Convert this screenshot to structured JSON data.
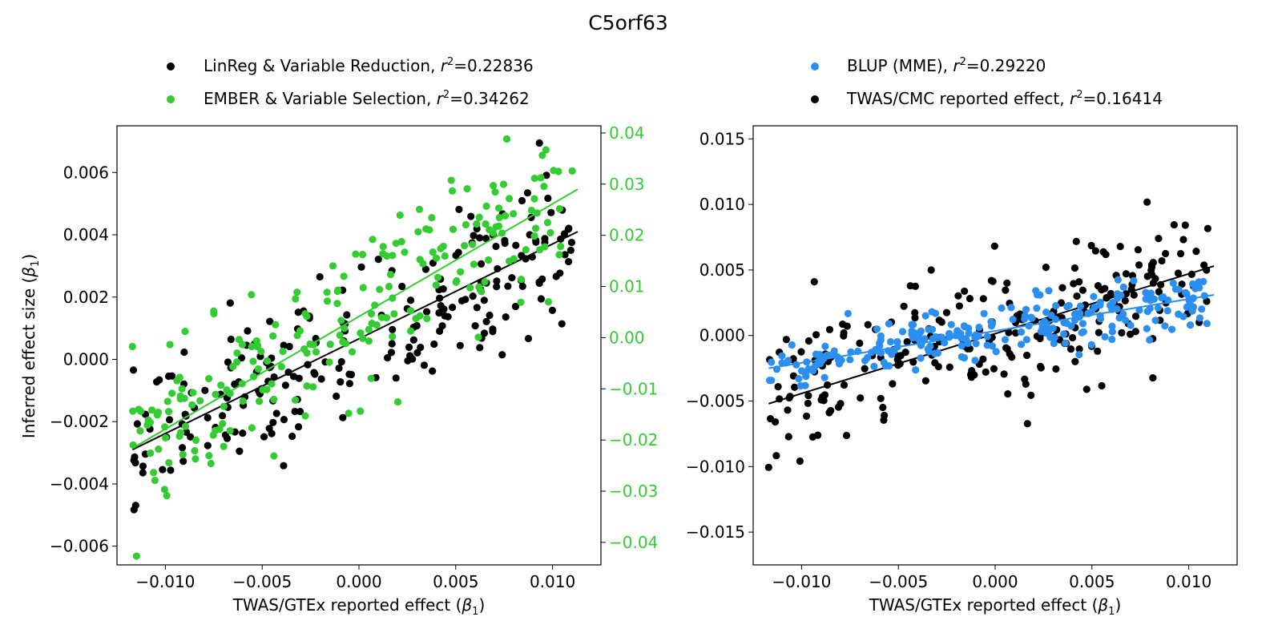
{
  "figure": {
    "title": "C5orf63"
  },
  "colors": {
    "black": "#000000",
    "green": "#33cc33",
    "blue": "#2b8ff0"
  },
  "chart_data": [
    {
      "type": "scatter",
      "panel": "left",
      "xlabel_prefix": "TWAS/GTEx reported effect (",
      "xlabel_sym": "β",
      "xlabel_sub": "1",
      "xlabel_suffix": ")",
      "ylabel_prefix": "Inferred effect size (",
      "ylabel_sym": "β",
      "ylabel_sub": "1",
      "ylabel_suffix": ")",
      "xlim": [
        -0.0125,
        0.0125
      ],
      "ylim": [
        -0.0066,
        0.0075
      ],
      "y2lim": [
        -0.0444,
        0.0414
      ],
      "xticks": [
        -0.01,
        -0.005,
        0.0,
        0.005,
        0.01
      ],
      "xtick_labels": [
        "−0.010",
        "−0.005",
        "0.000",
        "0.005",
        "0.010"
      ],
      "yticks": [
        -0.006,
        -0.004,
        -0.002,
        0.0,
        0.002,
        0.004,
        0.006
      ],
      "ytick_labels": [
        "−0.006",
        "−0.004",
        "−0.002",
        "0.000",
        "0.002",
        "0.004",
        "0.006"
      ],
      "y2ticks": [
        -0.04,
        -0.03,
        -0.02,
        -0.01,
        0.0,
        0.01,
        0.02,
        0.03,
        0.04
      ],
      "y2tick_labels": [
        "−0.04",
        "−0.03",
        "−0.02",
        "−0.01",
        "0.00",
        "0.01",
        "0.02",
        "0.03",
        "0.04"
      ],
      "legend": [
        {
          "label": "LinReg & Variable Reduction, ",
          "stat": "=0.22836",
          "color": "#000000"
        },
        {
          "label": "EMBER & Variable Selection, ",
          "stat": "=0.34262",
          "color": "#33cc33"
        }
      ],
      "series": [
        {
          "name": "LinReg & Variable Reduction",
          "color": "#000000",
          "axis": "left",
          "n_points": 230,
          "fit": {
            "x": [
              -0.0117,
              0.0113
            ],
            "y": [
              -0.0029,
              0.0041
            ]
          }
        },
        {
          "name": "EMBER & Variable Selection",
          "color": "#33cc33",
          "axis": "right",
          "n_points": 230,
          "fit": {
            "x": [
              -0.0117,
              0.0113
            ],
            "y": [
              -0.0216,
              0.029
            ]
          }
        }
      ]
    },
    {
      "type": "scatter",
      "panel": "right",
      "xlabel_prefix": "TWAS/GTEx reported effect (",
      "xlabel_sym": "β",
      "xlabel_sub": "1",
      "xlabel_suffix": ")",
      "xlim": [
        -0.0125,
        0.0125
      ],
      "ylim": [
        -0.0175,
        0.016
      ],
      "xticks": [
        -0.01,
        -0.005,
        0.0,
        0.005,
        0.01
      ],
      "xtick_labels": [
        "−0.010",
        "−0.005",
        "0.000",
        "0.005",
        "0.010"
      ],
      "yticks": [
        -0.015,
        -0.01,
        -0.005,
        0.0,
        0.005,
        0.01,
        0.015
      ],
      "ytick_labels": [
        "−0.015",
        "−0.010",
        "−0.005",
        "0.000",
        "0.005",
        "0.010",
        "0.015"
      ],
      "legend": [
        {
          "label": "BLUP (MME), ",
          "stat": "=0.29220",
          "color": "#2b8ff0"
        },
        {
          "label": "TWAS/CMC reported effect, ",
          "stat": "=0.16414",
          "color": "#000000"
        }
      ],
      "series": [
        {
          "name": "TWAS/CMC reported effect",
          "color": "#000000",
          "n_points": 250,
          "fit": {
            "x": [
              -0.0117,
              0.0113
            ],
            "y": [
              -0.0052,
              0.0053
            ]
          }
        },
        {
          "name": "BLUP (MME)",
          "color": "#2b8ff0",
          "n_points": 250,
          "fit": {
            "x": [
              -0.0117,
              0.0113
            ],
            "y": [
              -0.0025,
              0.0031
            ]
          }
        }
      ]
    }
  ]
}
